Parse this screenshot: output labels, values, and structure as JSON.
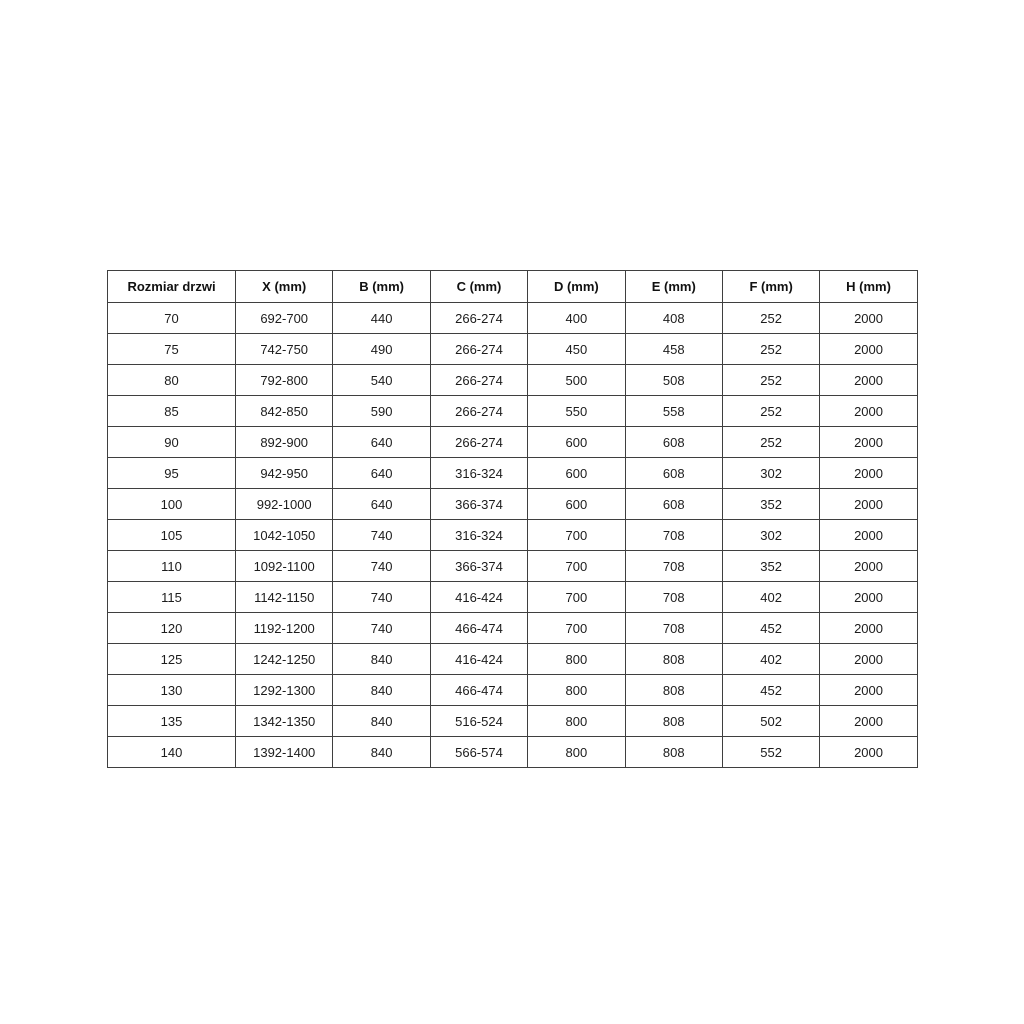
{
  "table": {
    "name": "door-size-specification-table",
    "columns": [
      "Rozmiar drzwi",
      "X (mm)",
      "B (mm)",
      "C (mm)",
      "D (mm)",
      "E (mm)",
      "F (mm)",
      "H (mm)"
    ],
    "rows": [
      [
        "70",
        "692-700",
        "440",
        "266-274",
        "400",
        "408",
        "252",
        "2000"
      ],
      [
        "75",
        "742-750",
        "490",
        "266-274",
        "450",
        "458",
        "252",
        "2000"
      ],
      [
        "80",
        "792-800",
        "540",
        "266-274",
        "500",
        "508",
        "252",
        "2000"
      ],
      [
        "85",
        "842-850",
        "590",
        "266-274",
        "550",
        "558",
        "252",
        "2000"
      ],
      [
        "90",
        "892-900",
        "640",
        "266-274",
        "600",
        "608",
        "252",
        "2000"
      ],
      [
        "95",
        "942-950",
        "640",
        "316-324",
        "600",
        "608",
        "302",
        "2000"
      ],
      [
        "100",
        "992-1000",
        "640",
        "366-374",
        "600",
        "608",
        "352",
        "2000"
      ],
      [
        "105",
        "1042-1050",
        "740",
        "316-324",
        "700",
        "708",
        "302",
        "2000"
      ],
      [
        "110",
        "1092-1100",
        "740",
        "366-374",
        "700",
        "708",
        "352",
        "2000"
      ],
      [
        "115",
        "1142-1150",
        "740",
        "416-424",
        "700",
        "708",
        "402",
        "2000"
      ],
      [
        "120",
        "1192-1200",
        "740",
        "466-474",
        "700",
        "708",
        "452",
        "2000"
      ],
      [
        "125",
        "1242-1250",
        "840",
        "416-424",
        "800",
        "808",
        "402",
        "2000"
      ],
      [
        "130",
        "1292-1300",
        "840",
        "466-474",
        "800",
        "808",
        "452",
        "2000"
      ],
      [
        "135",
        "1342-1350",
        "840",
        "516-524",
        "800",
        "808",
        "502",
        "2000"
      ],
      [
        "140",
        "1392-1400",
        "840",
        "566-574",
        "800",
        "808",
        "552",
        "2000"
      ]
    ],
    "colors": {
      "border": "#3f3f3f",
      "text": "#1c1c1c",
      "background": "#ffffff"
    }
  }
}
